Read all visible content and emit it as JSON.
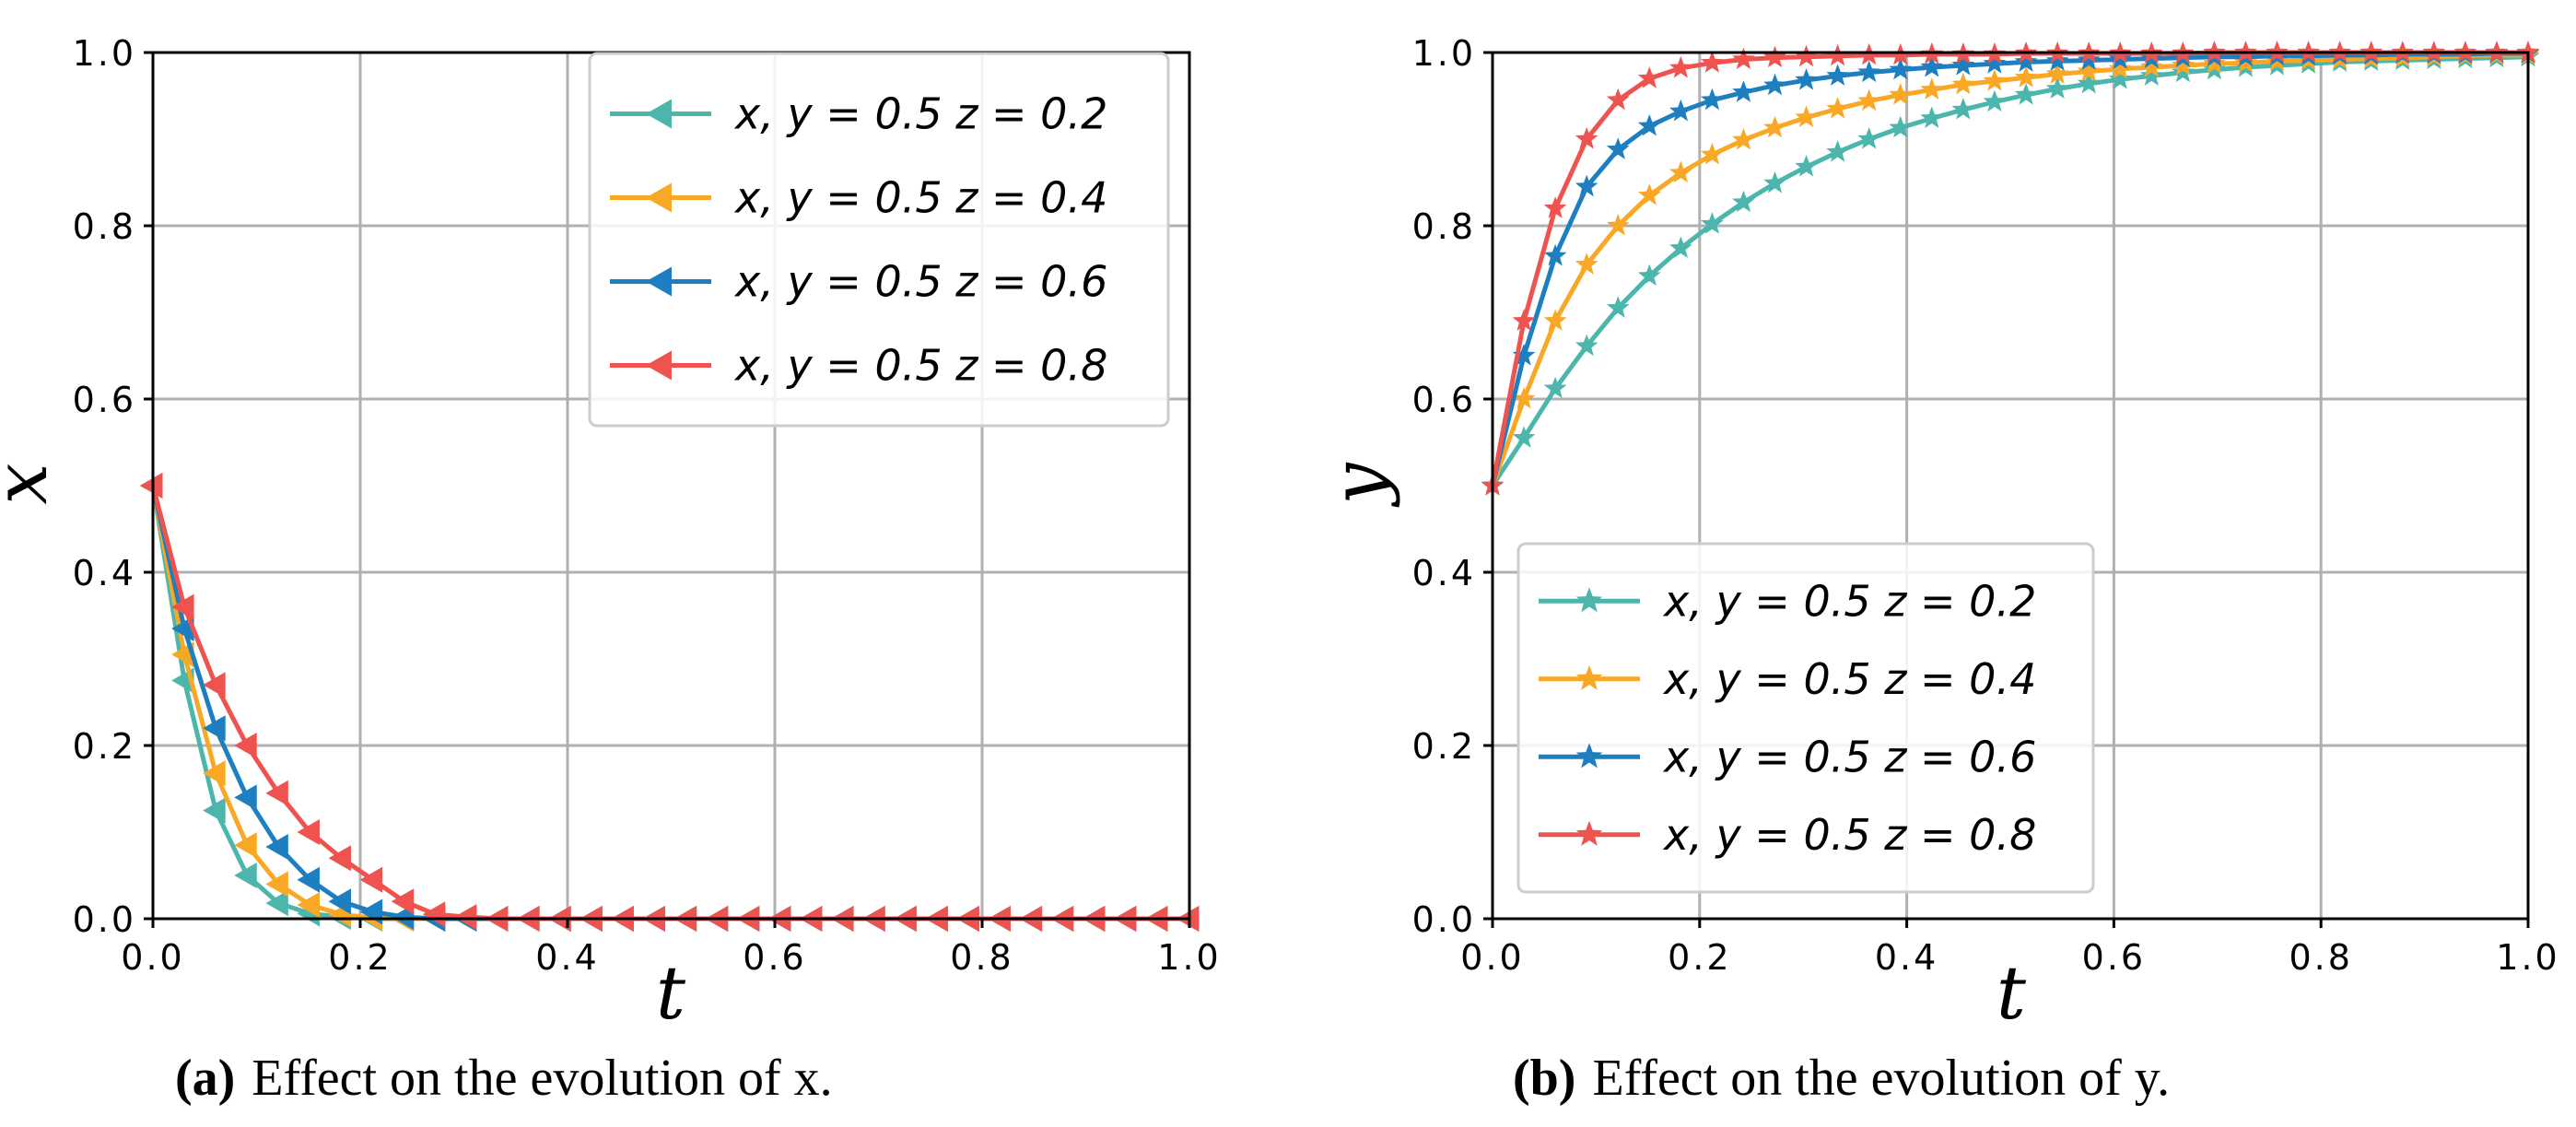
{
  "chart_data": [
    {
      "type": "line",
      "xlabel": "t",
      "ylabel": "x",
      "xlim": [
        0,
        1
      ],
      "ylim": [
        0,
        1
      ],
      "xticks": [
        "0.0",
        "0.2",
        "0.4",
        "0.6",
        "0.8",
        "1.0"
      ],
      "yticks": [
        "0.0",
        "0.2",
        "0.4",
        "0.6",
        "0.8",
        "1.0"
      ],
      "grid": true,
      "legend_position": "top-right",
      "marker": "left-triangle",
      "caption_letter": "(a)",
      "caption_text": "Effect on the evolution of x.",
      "x": [
        0.0,
        0.0303,
        0.0606,
        0.0909,
        0.1212,
        0.1515,
        0.1818,
        0.2121,
        0.2424,
        0.2727,
        0.303,
        0.3333,
        0.3636,
        0.3939,
        0.4242,
        0.4545,
        0.4848,
        0.5152,
        0.5455,
        0.5758,
        0.6061,
        0.6364,
        0.6667,
        0.697,
        0.7273,
        0.7576,
        0.7879,
        0.8182,
        0.8485,
        0.8788,
        0.9091,
        0.9394,
        0.9697,
        1.0
      ],
      "series": [
        {
          "name": "x, y = 0.5  z = 0.2",
          "color": "#4DB6AC",
          "values": [
            0.5,
            0.275,
            0.125,
            0.05,
            0.018,
            0.006,
            0.002,
            0.0,
            0.0,
            0.0,
            0.0,
            0.0,
            0.0,
            0.0,
            0.0,
            0.0,
            0.0,
            0.0,
            0.0,
            0.0,
            0.0,
            0.0,
            0.0,
            0.0,
            0.0,
            0.0,
            0.0,
            0.0,
            0.0,
            0.0,
            0.0,
            0.0,
            0.0,
            0.0
          ]
        },
        {
          "name": "x, y = 0.5  z = 0.4",
          "color": "#F9A825",
          "values": [
            0.5,
            0.305,
            0.168,
            0.085,
            0.04,
            0.016,
            0.005,
            0.001,
            0.0,
            0.0,
            0.0,
            0.0,
            0.0,
            0.0,
            0.0,
            0.0,
            0.0,
            0.0,
            0.0,
            0.0,
            0.0,
            0.0,
            0.0,
            0.0,
            0.0,
            0.0,
            0.0,
            0.0,
            0.0,
            0.0,
            0.0,
            0.0,
            0.0,
            0.0
          ]
        },
        {
          "name": "x, y = 0.5  z = 0.6",
          "color": "#1E7FC0",
          "values": [
            0.5,
            0.335,
            0.22,
            0.14,
            0.083,
            0.045,
            0.02,
            0.008,
            0.002,
            0.0,
            0.0,
            0.0,
            0.0,
            0.0,
            0.0,
            0.0,
            0.0,
            0.0,
            0.0,
            0.0,
            0.0,
            0.0,
            0.0,
            0.0,
            0.0,
            0.0,
            0.0,
            0.0,
            0.0,
            0.0,
            0.0,
            0.0,
            0.0,
            0.0
          ]
        },
        {
          "name": "x, y = 0.5  z = 0.8",
          "color": "#EF5350",
          "values": [
            0.5,
            0.36,
            0.27,
            0.2,
            0.145,
            0.1,
            0.07,
            0.045,
            0.02,
            0.005,
            0.002,
            0.0,
            0.0,
            0.0,
            0.0,
            0.0,
            0.0,
            0.0,
            0.0,
            0.0,
            0.0,
            0.0,
            0.0,
            0.0,
            0.0,
            0.0,
            0.0,
            0.0,
            0.0,
            0.0,
            0.0,
            0.0,
            0.0,
            0.0
          ]
        }
      ]
    },
    {
      "type": "line",
      "xlabel": "t",
      "ylabel": "y",
      "xlim": [
        0,
        1
      ],
      "ylim": [
        0,
        1
      ],
      "xticks": [
        "0.0",
        "0.2",
        "0.4",
        "0.6",
        "0.8",
        "1.0"
      ],
      "yticks": [
        "0.0",
        "0.2",
        "0.4",
        "0.6",
        "0.8",
        "1.0"
      ],
      "grid": true,
      "legend_position": "lower-left",
      "marker": "star",
      "caption_letter": "(b)",
      "caption_text": "Effect on the evolution of y.",
      "x": [
        0.0,
        0.0303,
        0.0606,
        0.0909,
        0.1212,
        0.1515,
        0.1818,
        0.2121,
        0.2424,
        0.2727,
        0.303,
        0.3333,
        0.3636,
        0.3939,
        0.4242,
        0.4545,
        0.4848,
        0.5152,
        0.5455,
        0.5758,
        0.6061,
        0.6364,
        0.6667,
        0.697,
        0.7273,
        0.7576,
        0.7879,
        0.8182,
        0.8485,
        0.8788,
        0.9091,
        0.9394,
        0.9697,
        1.0
      ],
      "series": [
        {
          "name": "x, y = 0.5  z = 0.2",
          "color": "#4DB6AC",
          "values": [
            0.5,
            0.555,
            0.612,
            0.661,
            0.705,
            0.742,
            0.774,
            0.802,
            0.827,
            0.849,
            0.868,
            0.885,
            0.9,
            0.913,
            0.924,
            0.934,
            0.943,
            0.951,
            0.958,
            0.964,
            0.969,
            0.973,
            0.977,
            0.98,
            0.983,
            0.985,
            0.987,
            0.989,
            0.99,
            0.991,
            0.992,
            0.993,
            0.994,
            0.995
          ]
        },
        {
          "name": "x, y = 0.5  z = 0.4",
          "color": "#F9A825",
          "values": [
            0.5,
            0.6,
            0.69,
            0.755,
            0.8,
            0.835,
            0.861,
            0.882,
            0.899,
            0.913,
            0.925,
            0.935,
            0.944,
            0.951,
            0.957,
            0.963,
            0.967,
            0.971,
            0.975,
            0.978,
            0.981,
            0.983,
            0.985,
            0.987,
            0.988,
            0.99,
            0.991,
            0.992,
            0.993,
            0.994,
            0.995,
            0.996,
            0.997,
            0.997
          ]
        },
        {
          "name": "x, y = 0.5  z = 0.6",
          "color": "#1E7FC0",
          "values": [
            0.5,
            0.65,
            0.765,
            0.845,
            0.888,
            0.915,
            0.932,
            0.945,
            0.954,
            0.962,
            0.968,
            0.973,
            0.977,
            0.98,
            0.983,
            0.985,
            0.987,
            0.989,
            0.99,
            0.991,
            0.992,
            0.993,
            0.994,
            0.995,
            0.995,
            0.996,
            0.996,
            0.997,
            0.997,
            0.998,
            0.998,
            0.998,
            0.999,
            0.999
          ]
        },
        {
          "name": "x, y = 0.5  z = 0.8",
          "color": "#EF5350",
          "values": [
            0.5,
            0.69,
            0.82,
            0.9,
            0.945,
            0.97,
            0.982,
            0.988,
            0.992,
            0.994,
            0.995,
            0.996,
            0.997,
            0.997,
            0.998,
            0.998,
            0.998,
            0.999,
            0.999,
            0.999,
            0.999,
            0.999,
            0.999,
            1.0,
            1.0,
            1.0,
            1.0,
            1.0,
            1.0,
            1.0,
            1.0,
            1.0,
            1.0,
            1.0
          ]
        }
      ]
    }
  ]
}
